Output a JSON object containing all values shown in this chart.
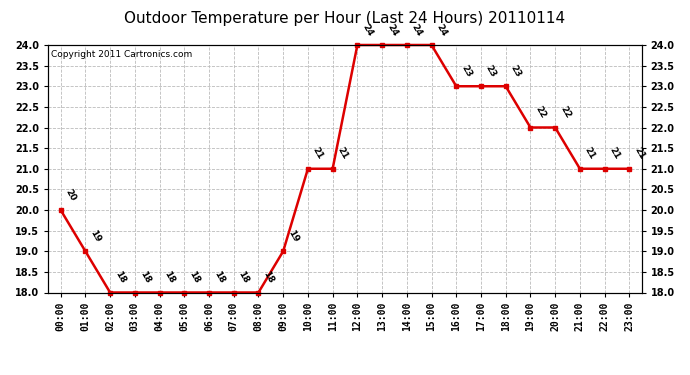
{
  "title": "Outdoor Temperature per Hour (Last 24 Hours) 20110114",
  "copyright": "Copyright 2011 Cartronics.com",
  "hours": [
    "00:00",
    "01:00",
    "02:00",
    "03:00",
    "04:00",
    "05:00",
    "06:00",
    "07:00",
    "08:00",
    "09:00",
    "10:00",
    "11:00",
    "12:00",
    "13:00",
    "14:00",
    "15:00",
    "16:00",
    "17:00",
    "18:00",
    "19:00",
    "20:00",
    "21:00",
    "22:00",
    "23:00"
  ],
  "temperatures": [
    20,
    19,
    18,
    18,
    18,
    18,
    18,
    18,
    18,
    19,
    21,
    21,
    24,
    24,
    24,
    24,
    23,
    23,
    23,
    22,
    22,
    21,
    21,
    21
  ],
  "line_color": "#dd0000",
  "marker_color": "#dd0000",
  "bg_color": "#ffffff",
  "grid_color": "#bbbbbb",
  "ylim_min": 18.0,
  "ylim_max": 24.0,
  "ytick_step": 0.5,
  "title_fontsize": 11,
  "copyright_fontsize": 6.5,
  "label_fontsize": 6.5,
  "tick_fontsize": 7
}
